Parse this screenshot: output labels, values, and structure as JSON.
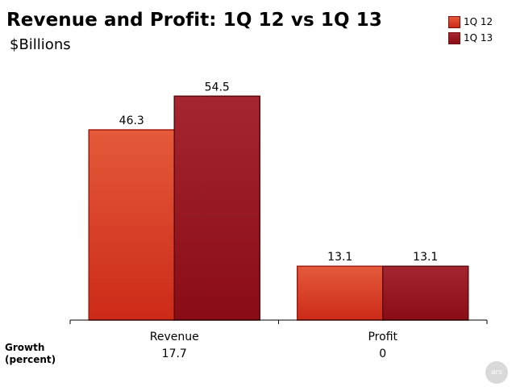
{
  "title": "Revenue and Profit: 1Q 12 vs 1Q 13",
  "subtitle": "$Billions",
  "growth_label_line1": "Growth",
  "growth_label_line2": "(percent)",
  "watermark": "ars",
  "colors": {
    "series1_top": "#e45a3a",
    "series1_bottom": "#cc2a18",
    "series1_edge": "#a31a10",
    "series2_top": "#a52530",
    "series2_bottom": "#8a0c14",
    "series2_edge": "#5e0a0e"
  },
  "chart_data": {
    "type": "bar",
    "title": "Revenue and Profit: 1Q 12 vs 1Q 13",
    "subtitle": "$Billions",
    "categories": [
      "Revenue",
      "Profit"
    ],
    "series": [
      {
        "name": "1Q 12",
        "values": [
          46.3,
          13.1
        ]
      },
      {
        "name": "1Q 13",
        "values": [
          54.5,
          13.1
        ]
      }
    ],
    "value_labels": [
      [
        "46.3",
        "13.1"
      ],
      [
        "54.5",
        "13.1"
      ]
    ],
    "growth": [
      "17.7",
      "0"
    ],
    "ylim": [
      0,
      60
    ],
    "grid": false,
    "legend_position": "top-right"
  }
}
